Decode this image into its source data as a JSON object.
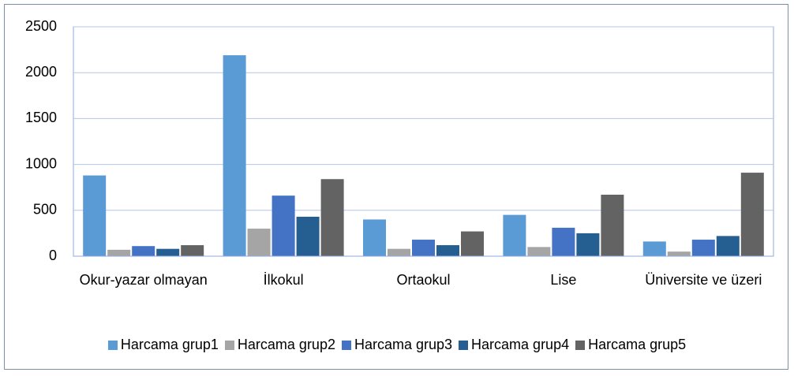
{
  "chart_data": {
    "type": "bar",
    "categories": [
      "Okur-yazar olmayan",
      "İlkokul",
      "Ortaokul",
      "Lise",
      "Üniversite ve üzeri"
    ],
    "series": [
      {
        "name": "Harcama grup1",
        "color": "#5b9bd5",
        "values": [
          880,
          2190,
          400,
          450,
          160
        ]
      },
      {
        "name": "Harcama grup2",
        "color": "#a5a5a5",
        "values": [
          70,
          300,
          80,
          100,
          50
        ]
      },
      {
        "name": "Harcama grup3",
        "color": "#4472c4",
        "values": [
          110,
          660,
          180,
          310,
          180
        ]
      },
      {
        "name": "Harcama grup4",
        "color": "#255e91",
        "values": [
          80,
          430,
          120,
          250,
          220
        ]
      },
      {
        "name": "Harcama grup5",
        "color": "#636363",
        "values": [
          120,
          840,
          270,
          670,
          910
        ]
      }
    ],
    "ylim": [
      0,
      2500
    ],
    "yticks": [
      0,
      500,
      1000,
      1500,
      2000,
      2500
    ],
    "grid": true,
    "legend": "bottom"
  }
}
